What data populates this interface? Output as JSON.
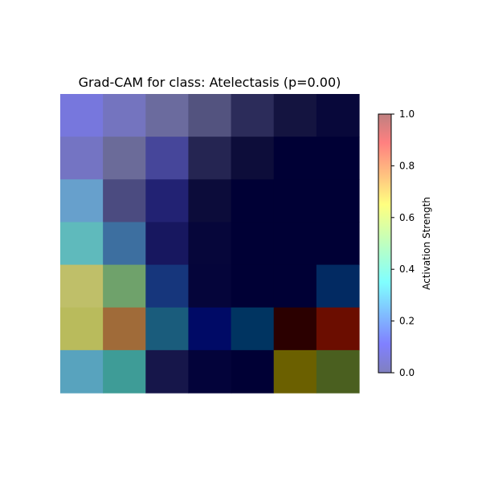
{
  "chart_data": {
    "type": "heatmap",
    "title": "Grad-CAM for class: Atelectasis (p=0.00)",
    "rows": 7,
    "cols": 7,
    "axes_visible": false,
    "cell_colors": [
      [
        "#7777dd",
        "#7474bf",
        "#6b6b9e",
        "#53537f",
        "#2c2c5a",
        "#141440",
        "#08083a"
      ],
      [
        "#7474c3",
        "#6b6b99",
        "#46469a",
        "#252552",
        "#0d0d3a",
        "#000035",
        "#000035"
      ],
      [
        "#67a0cc",
        "#4b4b80",
        "#222273",
        "#0c0c3a",
        "#000035",
        "#000035",
        "#000035"
      ],
      [
        "#5fbabc",
        "#3d6fa0",
        "#17175f",
        "#06063a",
        "#000035",
        "#000035",
        "#000035"
      ],
      [
        "#bfbf69",
        "#6fa26b",
        "#16367c",
        "#05053a",
        "#000035",
        "#000035",
        "#022a62"
      ],
      [
        "#b9bb5c",
        "#a06b39",
        "#1a5c7c",
        "#000a66",
        "#003461",
        "#2b0000",
        "#6b0d00"
      ],
      [
        "#58a3be",
        "#3e9c97",
        "#16164a",
        "#03033a",
        "#000035",
        "#6b6000",
        "#4a5f1f"
      ]
    ],
    "colorbar": {
      "label": "Activation Strength",
      "range": [
        0.0,
        1.0
      ],
      "ticks": [
        "0.0",
        "0.2",
        "0.4",
        "0.6",
        "0.8",
        "1.0"
      ],
      "tick_values": [
        0.0,
        0.2,
        0.4,
        0.6,
        0.8,
        1.0
      ],
      "colormap": "jet",
      "alpha": 0.5
    }
  }
}
